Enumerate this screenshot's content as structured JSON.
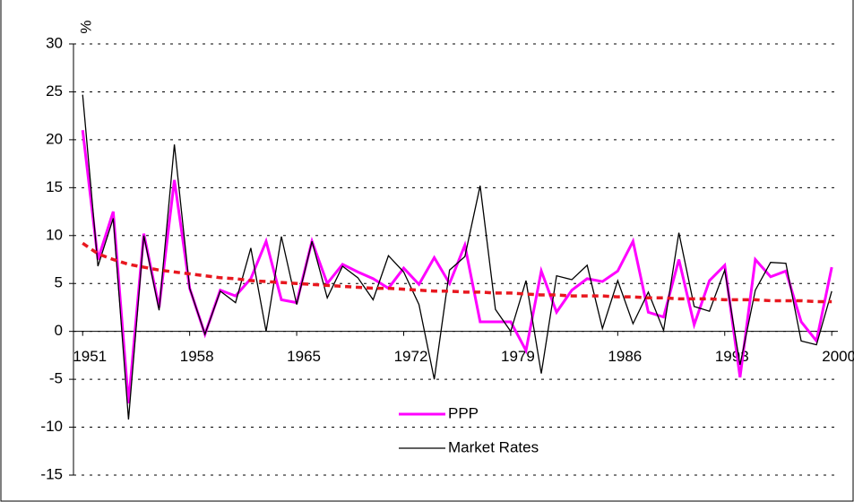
{
  "chart_data": {
    "type": "line",
    "ylabel": "%",
    "x": [
      1951,
      1952,
      1953,
      1954,
      1955,
      1956,
      1957,
      1958,
      1959,
      1960,
      1961,
      1962,
      1963,
      1964,
      1965,
      1966,
      1967,
      1968,
      1969,
      1970,
      1971,
      1972,
      1973,
      1974,
      1975,
      1976,
      1977,
      1978,
      1979,
      1980,
      1981,
      1982,
      1983,
      1984,
      1985,
      1986,
      1987,
      1988,
      1989,
      1990,
      1991,
      1992,
      1993,
      1994,
      1995,
      1996,
      1997,
      1998,
      1999,
      2000
    ],
    "series": [
      {
        "name": "PPP",
        "color": "#ff00ff",
        "values": [
          21,
          7.5,
          12.5,
          -7.5,
          10.2,
          2.5,
          15.8,
          4.5,
          -0.3,
          4.3,
          3.7,
          5.5,
          9.4,
          3.3,
          3.0,
          9.4,
          5.0,
          7.0,
          6.2,
          5.5,
          4.5,
          6.6,
          4.9,
          7.7,
          5.0,
          9.0,
          1.0,
          1.0,
          1.0,
          -2.0,
          6.3,
          2.0,
          4.3,
          5.5,
          5.2,
          6.3,
          9.4,
          2.0,
          1.5,
          7.5,
          0.7,
          5.3,
          6.9,
          -4.8,
          7.5,
          5.7,
          6.3,
          1.0,
          -1.0,
          6.7
        ]
      },
      {
        "name": "Market Rates",
        "color": "#000000",
        "values": [
          24.7,
          6.8,
          11.8,
          -9.2,
          10.0,
          2.2,
          19.5,
          4.5,
          -0.3,
          4.2,
          3.0,
          8.7,
          0.0,
          9.9,
          2.8,
          9.4,
          3.5,
          6.8,
          5.6,
          3.3,
          7.9,
          6.2,
          2.8,
          -5.0,
          6.4,
          7.8,
          15.2,
          2.3,
          0.0,
          5.3,
          -4.4,
          5.8,
          5.4,
          6.9,
          0.3,
          5.3,
          0.8,
          4.1,
          0.1,
          10.3,
          2.6,
          2.1,
          6.4,
          -3.5,
          4.3,
          7.2,
          7.1,
          -1.0,
          -1.4,
          4.2
        ]
      },
      {
        "color": "#e8171f",
        "dashed": true,
        "values": [
          9.2,
          8.1,
          7.5,
          7.0,
          6.7,
          6.4,
          6.2,
          6.0,
          5.8,
          5.6,
          5.5,
          5.3,
          5.2,
          5.1,
          5.0,
          4.9,
          4.8,
          4.7,
          4.6,
          4.5,
          4.5,
          4.4,
          4.3,
          4.2,
          4.2,
          4.1,
          4.1,
          4.0,
          4.0,
          3.9,
          3.8,
          3.8,
          3.7,
          3.7,
          3.7,
          3.6,
          3.6,
          3.5,
          3.5,
          3.4,
          3.4,
          3.4,
          3.3,
          3.3,
          3.3,
          3.2,
          3.2,
          3.2,
          3.1,
          3.1
        ]
      }
    ],
    "xlim": [
      1950.4,
      2000.4
    ],
    "xticks": [
      1951,
      1958,
      1965,
      1972,
      1979,
      1986,
      1993,
      2000
    ],
    "ylim": [
      -15,
      30
    ],
    "yticks": [
      -15,
      -10,
      -5,
      0,
      5,
      10,
      15,
      20,
      25,
      30
    ],
    "grid": true
  }
}
